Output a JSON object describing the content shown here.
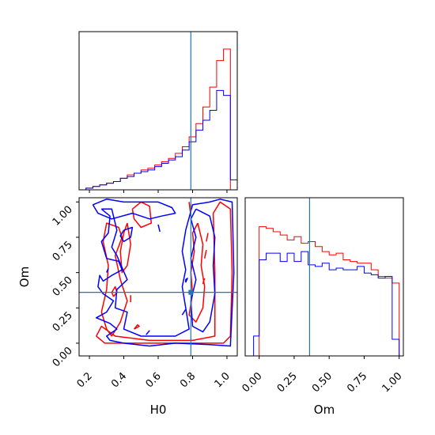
{
  "chart_data": {
    "type": "corner",
    "parameters": [
      "H0",
      "Om"
    ],
    "truth": {
      "H0": 0.79,
      "Om": 0.36
    },
    "colors": {
      "run_a": "#ff0000",
      "run_b": "#0000ff",
      "truth": "#1f77b4"
    },
    "h0_ticks": [
      "0.2",
      "0.4",
      "0.6",
      "0.8",
      "1.0"
    ],
    "om_ticks": [
      "0.00",
      "0.25",
      "0.50",
      "0.75",
      "1.00"
    ],
    "xlim_h0": [
      0.14,
      1.06
    ],
    "xlim_om": [
      -0.1,
      1.03
    ],
    "ylim_om": [
      -0.09,
      1.03
    ],
    "h0_bin_edges": [
      0.14,
      0.18,
      0.22,
      0.26,
      0.3,
      0.34,
      0.38,
      0.42,
      0.46,
      0.5,
      0.54,
      0.58,
      0.62,
      0.66,
      0.7,
      0.74,
      0.78,
      0.82,
      0.86,
      0.9,
      0.94,
      0.98,
      1.02,
      1.06
    ],
    "h0_hist_red": [
      0,
      1,
      2,
      3,
      4,
      5,
      7,
      9,
      10,
      12,
      13,
      15,
      17,
      19,
      22,
      26,
      32,
      40,
      50,
      62,
      78,
      85,
      0
    ],
    "h0_hist_blue": [
      0,
      1,
      2,
      3,
      4,
      5,
      7,
      8,
      10,
      11,
      12,
      14,
      16,
      18,
      20,
      24,
      29,
      36,
      42,
      48,
      60,
      57,
      6
    ],
    "om_bin_edges": [
      0.0,
      0.05,
      0.1,
      0.15,
      0.2,
      0.25,
      0.3,
      0.35,
      0.4,
      0.45,
      0.5,
      0.55,
      0.6,
      0.65,
      0.7,
      0.75,
      0.8,
      0.85,
      0.9,
      0.95,
      1.0
    ],
    "om_hist_red": [
      78,
      77,
      75,
      73,
      70,
      72,
      68,
      69,
      66,
      63,
      61,
      62,
      58,
      57,
      56,
      56,
      52,
      48,
      47,
      44
    ],
    "om_hist_blue": [
      58,
      62,
      62,
      57,
      62,
      57,
      63,
      55,
      54,
      56,
      52,
      53,
      52,
      52,
      54,
      50,
      49,
      47,
      48,
      10
    ],
    "contours_red": [
      [
        [
          0.24,
          0.05
        ],
        [
          0.29,
          0.0
        ],
        [
          0.55,
          0.0
        ],
        [
          0.8,
          0.0
        ],
        [
          0.98,
          0.0
        ],
        [
          1.02,
          0.05
        ],
        [
          1.03,
          0.5
        ],
        [
          1.02,
          0.95
        ],
        [
          0.96,
          1.0
        ],
        [
          0.92,
          0.92
        ],
        [
          0.93,
          0.5
        ],
        [
          0.93,
          0.05
        ],
        [
          0.8,
          0.02
        ],
        [
          0.55,
          0.02
        ],
        [
          0.35,
          0.05
        ],
        [
          0.27,
          0.12
        ],
        [
          0.24,
          0.05
        ]
      ],
      [
        [
          0.33,
          0.05
        ],
        [
          0.38,
          0.15
        ],
        [
          0.42,
          0.3
        ],
        [
          0.38,
          0.45
        ],
        [
          0.35,
          0.62
        ],
        [
          0.39,
          0.75
        ],
        [
          0.37,
          0.82
        ],
        [
          0.3,
          0.85
        ],
        [
          0.28,
          0.72
        ],
        [
          0.31,
          0.55
        ],
        [
          0.3,
          0.38
        ],
        [
          0.27,
          0.22
        ],
        [
          0.3,
          0.1
        ],
        [
          0.33,
          0.05
        ]
      ],
      [
        [
          0.45,
          0.95
        ],
        [
          0.5,
          1.0
        ],
        [
          0.55,
          0.97
        ],
        [
          0.56,
          0.85
        ],
        [
          0.5,
          0.82
        ],
        [
          0.46,
          0.88
        ],
        [
          0.45,
          0.95
        ]
      ],
      [
        [
          0.42,
          0.85
        ],
        [
          0.44,
          0.7
        ],
        [
          0.42,
          0.55
        ],
        [
          0.39,
          0.5
        ],
        [
          0.38,
          0.65
        ],
        [
          0.4,
          0.78
        ],
        [
          0.42,
          0.85
        ]
      ],
      [
        [
          0.83,
          0.85
        ],
        [
          0.86,
          0.7
        ],
        [
          0.85,
          0.55
        ],
        [
          0.87,
          0.4
        ],
        [
          0.86,
          0.25
        ],
        [
          0.82,
          0.15
        ],
        [
          0.78,
          0.2
        ],
        [
          0.8,
          0.35
        ],
        [
          0.79,
          0.5
        ],
        [
          0.81,
          0.65
        ],
        [
          0.8,
          0.78
        ],
        [
          0.83,
          0.85
        ]
      ],
      [
        [
          0.78,
          1.0
        ],
        [
          0.79,
          0.9
        ]
      ],
      [
        [
          0.34,
          0.33
        ],
        [
          0.36,
          0.36
        ],
        [
          0.35,
          0.4
        ],
        [
          0.33,
          0.36
        ],
        [
          0.34,
          0.33
        ]
      ],
      [
        [
          0.88,
          0.72
        ],
        [
          0.89,
          0.78
        ]
      ],
      [
        [
          0.87,
          0.6
        ],
        [
          0.88,
          0.66
        ]
      ],
      [
        [
          0.44,
          0.29
        ],
        [
          0.44,
          0.34
        ]
      ],
      [
        [
          0.46,
          0.1
        ],
        [
          0.49,
          0.12
        ],
        [
          0.48,
          0.13
        ],
        [
          0.46,
          0.1
        ]
      ],
      [
        [
          0.86,
          0.42
        ],
        [
          0.87,
          0.46
        ]
      ]
    ],
    "contours_blue": [
      [
        [
          0.22,
          0.98
        ],
        [
          0.3,
          1.02
        ],
        [
          0.4,
          1.0
        ],
        [
          0.6,
          1.0
        ],
        [
          0.68,
          0.96
        ],
        [
          0.7,
          0.92
        ],
        [
          0.62,
          0.9
        ],
        [
          0.55,
          0.88
        ],
        [
          0.45,
          0.92
        ],
        [
          0.33,
          0.88
        ],
        [
          0.25,
          0.92
        ],
        [
          0.22,
          0.98
        ]
      ],
      [
        [
          0.27,
          0.95
        ],
        [
          0.32,
          0.9
        ],
        [
          0.31,
          0.78
        ],
        [
          0.27,
          0.72
        ],
        [
          0.3,
          0.6
        ],
        [
          0.37,
          0.58
        ],
        [
          0.39,
          0.52
        ],
        [
          0.33,
          0.48
        ],
        [
          0.28,
          0.44
        ],
        [
          0.26,
          0.48
        ],
        [
          0.25,
          0.4
        ],
        [
          0.28,
          0.35
        ],
        [
          0.34,
          0.3
        ],
        [
          0.3,
          0.22
        ],
        [
          0.24,
          0.18
        ],
        [
          0.32,
          0.14
        ],
        [
          0.36,
          0.1
        ],
        [
          0.3,
          0.05
        ],
        [
          0.32,
          0.02
        ],
        [
          0.4,
          0.0
        ],
        [
          0.55,
          -0.02
        ],
        [
          0.7,
          0.0
        ],
        [
          0.9,
          -0.01
        ],
        [
          1.02,
          -0.02
        ],
        [
          1.04,
          0.5
        ],
        [
          1.03,
          1.0
        ],
        [
          0.96,
          1.02
        ],
        [
          0.9,
          1.0
        ],
        [
          0.8,
          0.98
        ],
        [
          0.76,
          0.8
        ],
        [
          0.74,
          0.65
        ],
        [
          0.76,
          0.52
        ],
        [
          0.74,
          0.4
        ],
        [
          0.76,
          0.25
        ],
        [
          0.78,
          0.1
        ],
        [
          0.7,
          0.05
        ],
        [
          0.5,
          0.05
        ],
        [
          0.4,
          0.1
        ],
        [
          0.42,
          0.22
        ],
        [
          0.35,
          0.25
        ],
        [
          0.36,
          0.38
        ],
        [
          0.42,
          0.45
        ],
        [
          0.36,
          0.62
        ],
        [
          0.33,
          0.68
        ],
        [
          0.36,
          0.8
        ],
        [
          0.33,
          0.95
        ],
        [
          0.27,
          0.95
        ]
      ],
      [
        [
          0.82,
          0.95
        ],
        [
          0.9,
          0.9
        ],
        [
          0.93,
          0.75
        ],
        [
          0.92,
          0.55
        ],
        [
          0.93,
          0.35
        ],
        [
          0.9,
          0.15
        ],
        [
          0.86,
          0.08
        ],
        [
          0.8,
          0.12
        ],
        [
          0.79,
          0.3
        ],
        [
          0.82,
          0.45
        ],
        [
          0.79,
          0.6
        ],
        [
          0.82,
          0.75
        ],
        [
          0.79,
          0.88
        ],
        [
          0.82,
          0.95
        ]
      ],
      [
        [
          0.4,
          0.8
        ],
        [
          0.45,
          0.82
        ],
        [
          0.44,
          0.75
        ],
        [
          0.4,
          0.72
        ],
        [
          0.38,
          0.76
        ],
        [
          0.4,
          0.8
        ]
      ],
      [
        [
          0.6,
          0.84
        ],
        [
          0.61,
          0.79
        ]
      ],
      [
        [
          0.76,
          0.43
        ],
        [
          0.77,
          0.46
        ],
        [
          0.76,
          0.45
        ],
        [
          0.76,
          0.43
        ]
      ],
      [
        [
          0.3,
          0.5
        ],
        [
          0.31,
          0.53
        ]
      ],
      [
        [
          0.53,
          0.06
        ],
        [
          0.55,
          0.09
        ]
      ],
      [
        [
          0.74,
          0.2
        ],
        [
          0.76,
          0.24
        ]
      ]
    ]
  }
}
